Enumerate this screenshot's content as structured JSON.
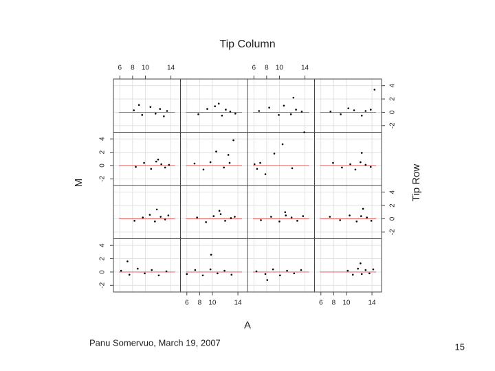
{
  "chart_data": {
    "type": "scatter",
    "title": "Tip Column",
    "x_label": "A",
    "y_label": "M",
    "y2_label": "Tip Row",
    "xlim": [
      5,
      15.5
    ],
    "ylim": [
      -3,
      5
    ],
    "xticks": [
      6,
      8,
      10,
      14
    ],
    "yticks": [
      -2,
      0,
      2,
      4
    ],
    "grid": true,
    "color": "#000000",
    "panels": [
      {
        "x": [
          8.2,
          9.5,
          10.8,
          11.6,
          12.3,
          12.9,
          13.4,
          9.0
        ],
        "y": [
          0.3,
          -0.4,
          0.8,
          -0.2,
          0.5,
          -0.6,
          0.2,
          1.1
        ]
      },
      {
        "x": [
          7.8,
          9.2,
          10.4,
          11.5,
          12.1,
          12.8,
          13.6,
          11.0
        ],
        "y": [
          -0.3,
          0.5,
          0.9,
          -0.5,
          0.4,
          0.1,
          -0.2,
          1.3
        ]
      },
      {
        "x": [
          6.8,
          8.4,
          9.9,
          10.7,
          11.8,
          12.6,
          13.5,
          12.2
        ],
        "y": [
          0.2,
          0.7,
          -0.4,
          1.0,
          -0.3,
          0.4,
          0.1,
          2.2
        ]
      },
      {
        "x": [
          7.5,
          9.1,
          10.3,
          11.2,
          12.4,
          13.0,
          13.8,
          14.4
        ],
        "y": [
          0.1,
          -0.3,
          0.6,
          0.3,
          -0.5,
          0.2,
          0.4,
          3.4
        ]
      },
      {
        "x": [
          8.5,
          9.8,
          10.9,
          11.7,
          12.5,
          13.1,
          13.7,
          12.0
        ],
        "y": [
          -0.2,
          0.4,
          -0.5,
          0.6,
          0.2,
          -0.3,
          0.1,
          0.9
        ]
      },
      {
        "x": [
          7.2,
          8.6,
          9.7,
          10.6,
          11.8,
          12.7,
          13.3,
          12.5
        ],
        "y": [
          0.3,
          -0.6,
          0.5,
          2.1,
          -0.3,
          0.4,
          3.8,
          1.6
        ]
      },
      {
        "x": [
          6.1,
          6.5,
          7.0,
          7.8,
          9.2,
          10.5,
          12.0,
          13.9
        ],
        "y": [
          0.2,
          -0.5,
          0.4,
          -1.3,
          1.8,
          3.2,
          -0.4,
          5.0
        ]
      },
      {
        "x": [
          7.9,
          9.3,
          10.6,
          11.4,
          12.2,
          13.0,
          13.8,
          12.4
        ],
        "y": [
          0.4,
          -0.3,
          0.2,
          -0.6,
          0.5,
          0.1,
          -0.2,
          1.9
        ]
      },
      {
        "x": [
          8.3,
          9.6,
          10.7,
          11.5,
          12.4,
          13.1,
          13.6,
          11.8
        ],
        "y": [
          -0.3,
          0.2,
          0.6,
          -0.4,
          0.3,
          -0.1,
          0.5,
          1.4
        ]
      },
      {
        "x": [
          7.6,
          9.0,
          10.2,
          11.3,
          12.0,
          12.9,
          13.5,
          11.1
        ],
        "y": [
          0.2,
          -0.5,
          0.4,
          0.7,
          -0.3,
          0.1,
          0.3,
          1.2
        ]
      },
      {
        "x": [
          7.1,
          8.7,
          10.0,
          11.0,
          11.9,
          12.8,
          13.7,
          10.9
        ],
        "y": [
          -0.2,
          0.3,
          -0.4,
          0.5,
          0.2,
          -0.3,
          0.4,
          1.0
        ]
      },
      {
        "x": [
          7.4,
          9.0,
          10.5,
          11.6,
          12.3,
          13.2,
          13.9,
          12.6
        ],
        "y": [
          0.3,
          -0.2,
          0.5,
          -0.4,
          0.4,
          0.2,
          -0.3,
          1.5
        ]
      },
      {
        "x": [
          6.2,
          7.5,
          8.8,
          9.9,
          11.0,
          12.1,
          13.3,
          7.2
        ],
        "y": [
          0.2,
          -0.4,
          0.5,
          -0.2,
          0.3,
          -0.5,
          0.1,
          1.6
        ]
      },
      {
        "x": [
          6.0,
          7.3,
          8.5,
          9.7,
          10.8,
          11.9,
          13.0,
          9.8
        ],
        "y": [
          -0.3,
          0.3,
          -0.5,
          0.4,
          -0.2,
          0.2,
          -0.4,
          2.6
        ]
      },
      {
        "x": [
          6.4,
          7.8,
          9.0,
          10.1,
          11.2,
          12.3,
          13.4,
          8.1
        ],
        "y": [
          0.1,
          -0.3,
          0.4,
          -0.5,
          0.2,
          -0.2,
          0.3,
          -1.2
        ]
      },
      {
        "x": [
          10.2,
          11.0,
          11.8,
          12.4,
          13.0,
          13.6,
          14.2,
          12.2
        ],
        "y": [
          0.2,
          -0.4,
          0.5,
          -0.3,
          0.3,
          -0.2,
          0.4,
          1.3
        ]
      }
    ]
  },
  "footer": {
    "author": "Panu Somervuo, March 19, 2007",
    "page": "15"
  }
}
